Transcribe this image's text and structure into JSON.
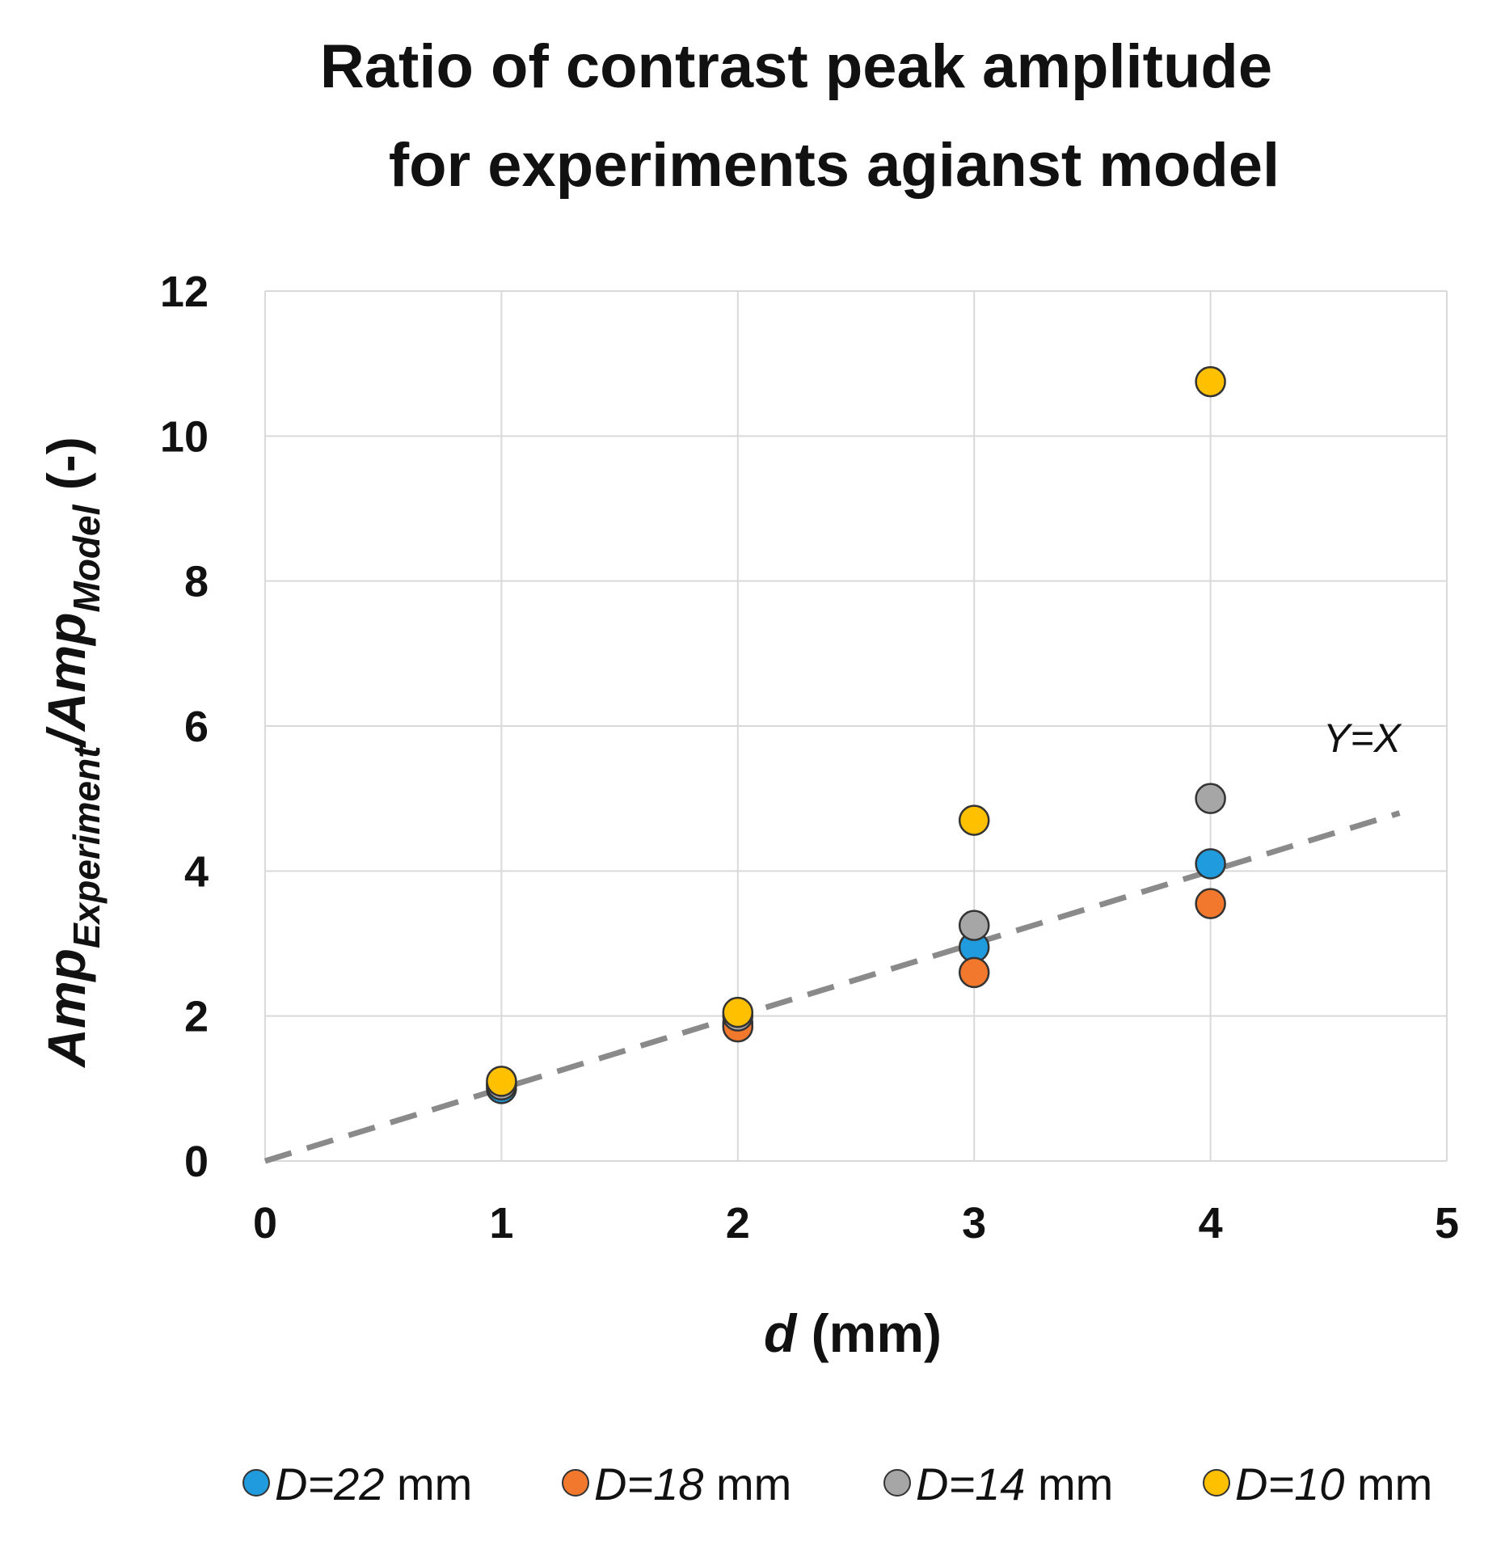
{
  "chart_data": {
    "type": "scatter",
    "title_lines": [
      "Ratio of contrast peak amplitude",
      "for experiments agianst model"
    ],
    "xlabel": {
      "italic": "d",
      "rest": " (mm)"
    },
    "ylabel": {
      "main1": "Amp",
      "sub1": "Experiment",
      "slash": "/",
      "main2": "Amp",
      "sub2": "Model",
      "unit": " (-)"
    },
    "xlim": [
      0,
      5
    ],
    "ylim": [
      0,
      12
    ],
    "x_ticks": [
      0,
      1,
      2,
      3,
      4,
      5
    ],
    "y_ticks": [
      0,
      2,
      4,
      6,
      8,
      10,
      12
    ],
    "grid": true,
    "legend_position": "bottom",
    "reference_line": {
      "label": "Y=X",
      "style": "dashed",
      "color": "#8a8a8a",
      "x": [
        0,
        4.8
      ],
      "y": [
        0,
        4.8
      ]
    },
    "series": [
      {
        "name_italic": "D=22",
        "name_unit": " mm",
        "color": "#1f9bde",
        "x": [
          1,
          2,
          3,
          4
        ],
        "y": [
          1.0,
          1.9,
          2.95,
          4.1
        ]
      },
      {
        "name_italic": "D=18",
        "name_unit": " mm",
        "color": "#f2782d",
        "x": [
          1,
          2,
          3,
          4
        ],
        "y": [
          1.05,
          1.85,
          2.6,
          3.55
        ]
      },
      {
        "name_italic": "D=14",
        "name_unit": " mm",
        "color": "#a6a6a6",
        "x": [
          1,
          2,
          3,
          4
        ],
        "y": [
          1.05,
          2.0,
          3.25,
          5.0
        ]
      },
      {
        "name_italic": "D=10",
        "name_unit": " mm",
        "color": "#ffc000",
        "x": [
          1,
          2,
          3,
          4
        ],
        "y": [
          1.1,
          2.05,
          4.7,
          10.75
        ]
      }
    ]
  }
}
